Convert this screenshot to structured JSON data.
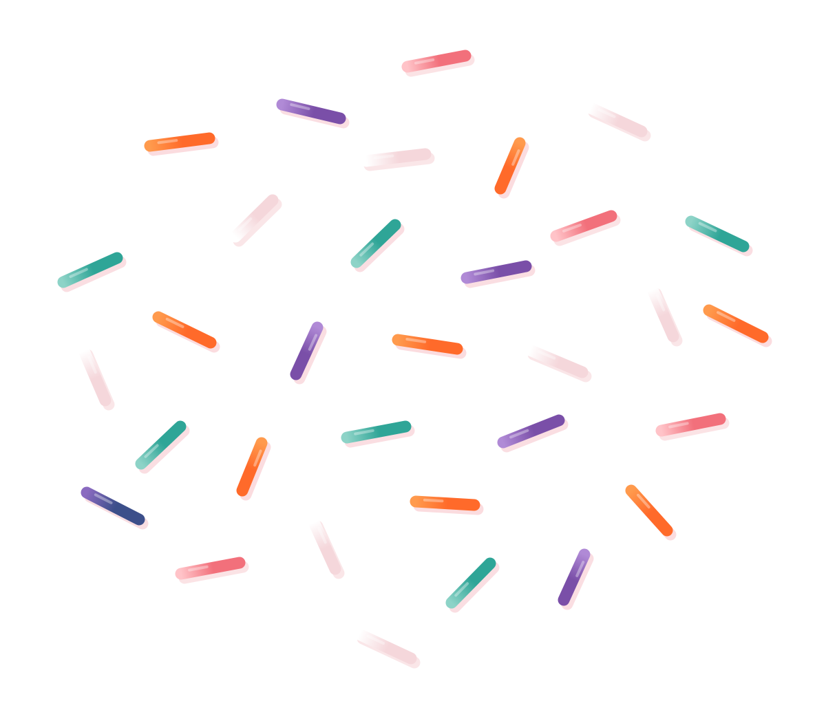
{
  "background": "#ffffff",
  "palette": {
    "orange": {
      "light": "#ff9a4d",
      "dark": "#ff6a2a",
      "shadow": "#f7b3b9"
    },
    "teal": {
      "light": "#8dd3c7",
      "dark": "#2fa597",
      "shadow": "#f5b8bf"
    },
    "purple": {
      "light": "#b08ad6",
      "dark": "#7a4fa8",
      "shadow": "#f5b7c0"
    },
    "pink": {
      "light": "#ffc3c8",
      "dark": "#f2707b",
      "shadow": "#f7c2c7"
    },
    "white": {
      "light": "#ffffff",
      "dark": "#f5d7db",
      "shadow": "#f4c9ce"
    },
    "navy": {
      "light": "#8a6ac0",
      "dark": "#3c4f8a",
      "shadow": "#f1b6bd"
    }
  },
  "sprinkles": [
    {
      "color": "pink"
    },
    {
      "color": "purple"
    },
    {
      "color": "white"
    },
    {
      "color": "orange"
    },
    {
      "color": "white"
    },
    {
      "color": "orange"
    },
    {
      "color": "white"
    },
    {
      "color": "teal"
    },
    {
      "color": "pink"
    },
    {
      "color": "teal"
    },
    {
      "color": "teal"
    },
    {
      "color": "purple"
    },
    {
      "color": "orange"
    },
    {
      "color": "purple"
    },
    {
      "color": "orange"
    },
    {
      "color": "white"
    },
    {
      "color": "white"
    },
    {
      "color": "orange"
    },
    {
      "color": "white"
    },
    {
      "color": "teal"
    },
    {
      "color": "orange"
    },
    {
      "color": "teal"
    },
    {
      "color": "purple"
    },
    {
      "color": "pink"
    },
    {
      "color": "navy"
    },
    {
      "color": "orange"
    },
    {
      "color": "orange"
    },
    {
      "color": "white"
    },
    {
      "color": "pink"
    },
    {
      "color": "teal"
    },
    {
      "color": "purple"
    },
    {
      "color": "white"
    }
  ]
}
